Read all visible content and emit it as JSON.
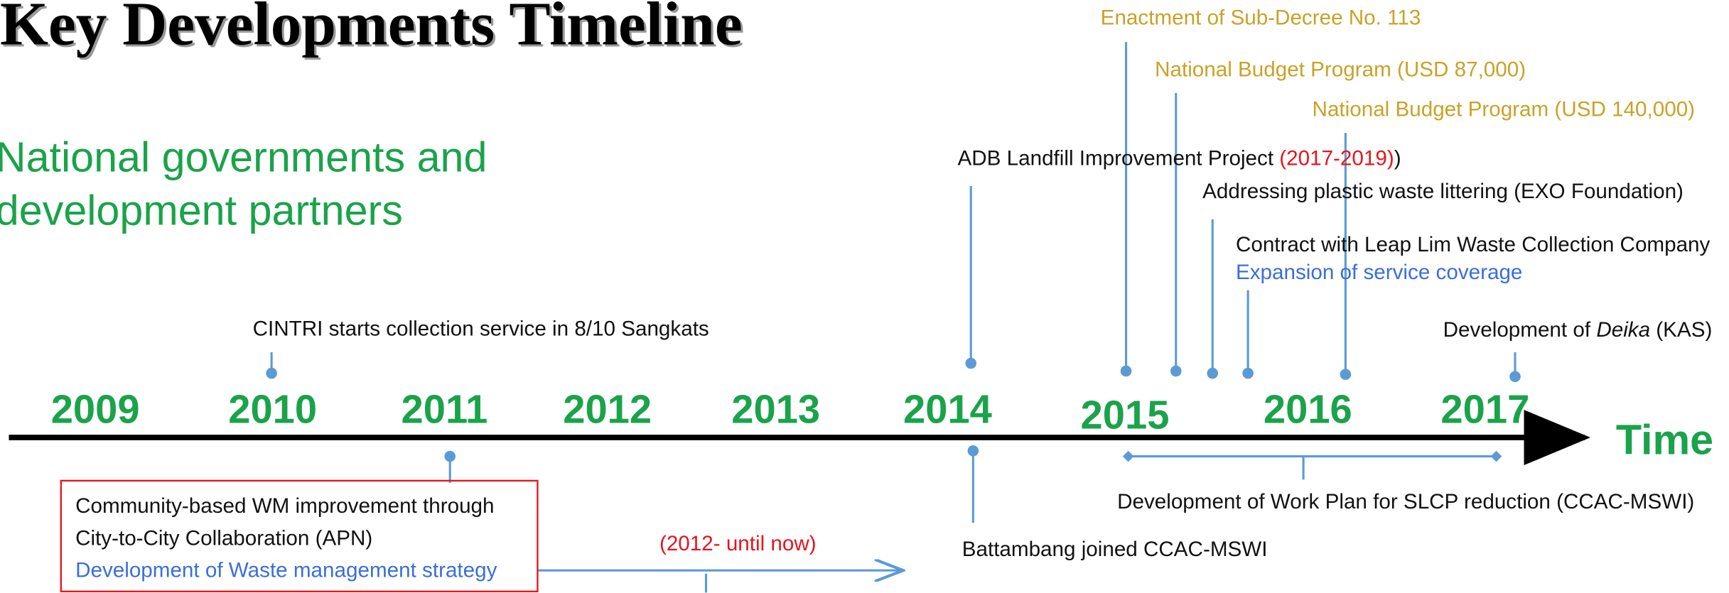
{
  "title": "Key Developments Timeline",
  "subtitle": [
    "National governments and",
    "development partners"
  ],
  "years": [
    "2009",
    "2010",
    "2011",
    "2012",
    "2013",
    "2014",
    "2015",
    "2016",
    "2017"
  ],
  "axis_label": "Time",
  "events_above": [
    {
      "text": "Enactment of Sub-Decree No. 113"
    },
    {
      "text": "National Budget Program (USD 87,000)"
    },
    {
      "text": "National Budget Program (USD 140,000)"
    },
    {
      "text": "ADB Landfill Improvement Project ",
      "note": "(2017-2019)",
      "close": ")"
    },
    {
      "text": "Addressing plastic waste littering (EXO Foundation)"
    },
    {
      "text": "Contract with Leap Lim Waste Collection Company",
      "detail": "Expansion of service coverage"
    },
    {
      "text": "Development of ",
      "italic": "Deika",
      "rest": " (KAS)"
    },
    {
      "text": "CINTRI starts collection service in 8/10 Sangkats"
    }
  ],
  "events_below": [
    {
      "lines": [
        "Community-based WM improvement through",
        "City-to-City Collaboration (APN)"
      ],
      "detail": "Development of Waste management strategy",
      "note": "(2012- until now)"
    },
    {
      "text": "Battambang joined CCAC-MSWI"
    },
    {
      "text": "Development of Work Plan for SLCP reduction (CCAC-MSWI)"
    }
  ]
}
